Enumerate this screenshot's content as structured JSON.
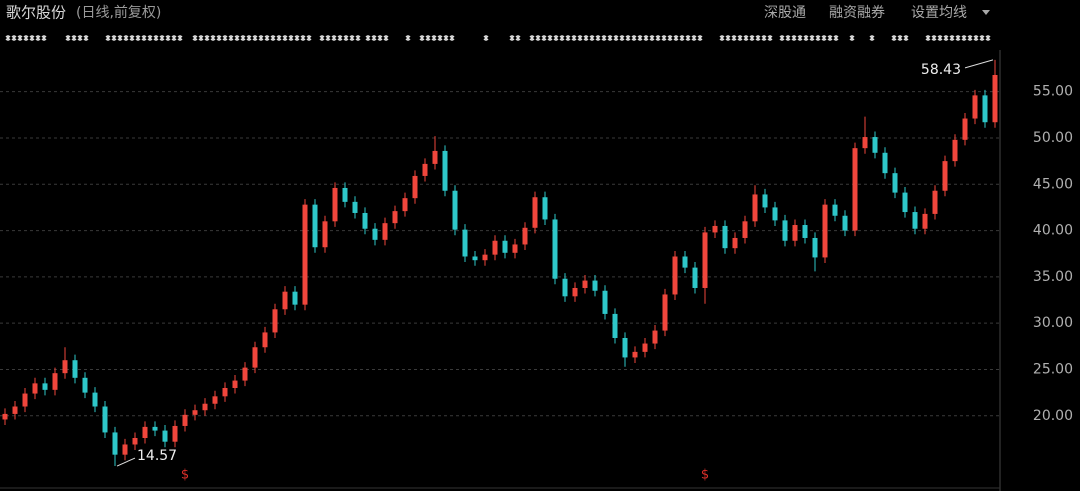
{
  "chart_data": {
    "type": "candlestick",
    "title": "歌尔股份",
    "subtitle": "(日线,前复权)",
    "menu": [
      "深股通",
      "融资融券",
      "设置均线"
    ],
    "annotations": [
      "58.43",
      "14.57"
    ],
    "ylim": [
      12.2,
      59.5
    ],
    "yticks": [
      {
        "value": 20,
        "label": "20.00"
      },
      {
        "value": 25,
        "label": "25.00"
      },
      {
        "value": 30,
        "label": "30.00"
      },
      {
        "value": 35,
        "label": "35.00"
      },
      {
        "value": 40,
        "label": "40.00"
      },
      {
        "value": 45,
        "label": "45.00"
      },
      {
        "value": 50,
        "label": "50.00"
      },
      {
        "value": 55,
        "label": "55.00"
      }
    ],
    "grid": true,
    "up_color": "#f0463c",
    "down_color": "#2ec7c9",
    "open": [
      19.6,
      20.2,
      21.0,
      22.4,
      23.5,
      22.8,
      24.6,
      26.0,
      24.1,
      22.5,
      21.0,
      18.2,
      15.8,
      16.9,
      17.6,
      18.8,
      18.4,
      17.2,
      18.9,
      20.1,
      20.6,
      21.3,
      22.1,
      23.0,
      23.8,
      25.2,
      27.4,
      29.0,
      31.5,
      33.4,
      32.0,
      42.8,
      38.2,
      41.0,
      44.6,
      43.1,
      41.9,
      40.2,
      39.0,
      40.8,
      42.1,
      43.5,
      45.9,
      47.2,
      48.6,
      44.3,
      40.1,
      37.2,
      36.8,
      37.4,
      38.9,
      37.6,
      38.5,
      40.3,
      43.6,
      41.2,
      34.8,
      32.9,
      33.8,
      34.6,
      33.5,
      31.0,
      28.4,
      26.3,
      26.9,
      27.8,
      29.2,
      33.1,
      37.2,
      36.0,
      33.8,
      39.8,
      40.5,
      38.1,
      39.2,
      41.0,
      43.9,
      42.5,
      41.1,
      38.9,
      40.6,
      39.2,
      37.1,
      42.8,
      41.6,
      40.0,
      48.9,
      50.1,
      48.4,
      46.2,
      44.1,
      42.0,
      40.2,
      41.8,
      44.3,
      47.5,
      49.8,
      52.1,
      54.6,
      51.7
    ],
    "high": [
      20.8,
      21.6,
      23.0,
      24.1,
      24.1,
      25.2,
      27.4,
      26.6,
      24.7,
      23.1,
      21.6,
      18.8,
      17.5,
      18.2,
      19.4,
      19.4,
      19.0,
      19.5,
      20.7,
      21.2,
      21.9,
      22.7,
      23.6,
      24.4,
      25.8,
      28.0,
      29.6,
      32.1,
      34.0,
      34.0,
      43.4,
      43.4,
      41.6,
      45.2,
      45.2,
      43.7,
      42.5,
      40.8,
      41.4,
      42.7,
      44.1,
      46.5,
      47.8,
      50.2,
      49.2,
      44.9,
      40.7,
      37.8,
      38.0,
      39.5,
      39.5,
      39.1,
      40.9,
      44.2,
      44.2,
      41.8,
      35.4,
      34.4,
      35.2,
      35.2,
      34.1,
      31.6,
      29.0,
      27.5,
      28.4,
      29.8,
      33.7,
      37.8,
      37.8,
      36.6,
      40.4,
      41.1,
      41.1,
      39.8,
      41.6,
      44.9,
      44.5,
      43.1,
      41.7,
      41.2,
      41.2,
      39.8,
      43.4,
      43.4,
      42.2,
      49.5,
      52.3,
      50.7,
      49.0,
      46.8,
      44.7,
      42.6,
      42.4,
      44.9,
      48.1,
      50.4,
      52.7,
      55.2,
      55.2,
      58.43
    ],
    "low": [
      19.0,
      19.6,
      20.4,
      21.8,
      22.2,
      22.2,
      24.0,
      23.5,
      21.9,
      20.4,
      17.6,
      14.57,
      15.2,
      16.3,
      17.0,
      17.8,
      16.6,
      16.6,
      18.3,
      19.5,
      20.0,
      20.7,
      21.5,
      22.4,
      23.2,
      24.6,
      26.8,
      28.4,
      30.9,
      31.4,
      31.4,
      37.6,
      37.6,
      40.4,
      42.5,
      41.3,
      39.6,
      38.4,
      38.4,
      40.2,
      41.5,
      42.9,
      45.3,
      46.6,
      43.7,
      39.5,
      36.6,
      36.2,
      36.2,
      36.8,
      37.0,
      37.0,
      37.9,
      39.7,
      40.6,
      34.2,
      32.3,
      32.3,
      33.2,
      32.9,
      30.4,
      27.8,
      25.3,
      25.7,
      26.3,
      27.2,
      28.6,
      32.5,
      35.4,
      33.2,
      32.1,
      39.2,
      37.5,
      37.5,
      38.6,
      40.4,
      41.9,
      40.5,
      38.3,
      38.3,
      38.6,
      35.6,
      36.5,
      41.0,
      39.4,
      39.4,
      48.3,
      47.8,
      45.6,
      43.5,
      41.4,
      39.6,
      39.6,
      41.2,
      43.7,
      46.9,
      49.2,
      51.5,
      51.1,
      51.1
    ],
    "close": [
      20.2,
      21.0,
      22.4,
      23.5,
      22.8,
      24.6,
      26.0,
      24.1,
      22.5,
      21.0,
      18.2,
      15.8,
      16.9,
      17.6,
      18.8,
      18.4,
      17.2,
      18.9,
      20.1,
      20.6,
      21.3,
      22.1,
      23.0,
      23.8,
      25.2,
      27.4,
      29.0,
      31.5,
      33.4,
      32.0,
      42.8,
      38.2,
      41.0,
      44.6,
      43.1,
      41.9,
      40.2,
      39.0,
      40.8,
      42.1,
      43.5,
      45.9,
      47.2,
      48.6,
      44.3,
      40.1,
      37.2,
      36.8,
      37.4,
      38.9,
      37.6,
      38.5,
      40.3,
      43.6,
      41.2,
      34.8,
      32.9,
      33.8,
      34.6,
      33.5,
      31.0,
      28.4,
      26.3,
      26.9,
      27.8,
      29.2,
      33.1,
      37.2,
      36.0,
      33.8,
      39.8,
      40.5,
      38.1,
      39.2,
      41.0,
      43.9,
      42.5,
      41.1,
      38.9,
      40.6,
      39.2,
      37.1,
      42.8,
      41.6,
      40.0,
      48.9,
      50.1,
      48.4,
      46.2,
      44.1,
      42.0,
      40.2,
      41.8,
      44.3,
      47.5,
      49.8,
      52.1,
      54.6,
      51.7,
      56.8
    ]
  }
}
